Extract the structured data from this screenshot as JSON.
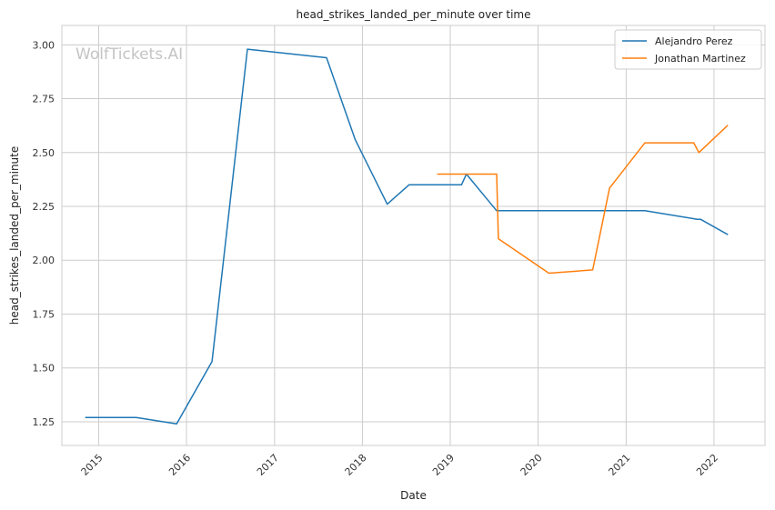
{
  "watermark": "WolfTickets.AI",
  "chart_data": {
    "type": "line",
    "title": "head_strikes_landed_per_minute over time",
    "xlabel": "Date",
    "ylabel": "head_strikes_landed_per_minute",
    "xlim": [
      "2014-08-01",
      "2022-08-01"
    ],
    "ylim": [
      1.14,
      3.09
    ],
    "x_ticks": [
      "2015",
      "2016",
      "2017",
      "2018",
      "2019",
      "2020",
      "2021",
      "2022"
    ],
    "y_ticks": [
      "1.25",
      "1.50",
      "1.75",
      "2.00",
      "2.25",
      "2.50",
      "2.75",
      "3.00"
    ],
    "grid": true,
    "legend_position": "top-right",
    "series": [
      {
        "name": "Alejandro Perez",
        "color": "#1f77b4",
        "points": [
          {
            "x": "2014-11-08",
            "y": 1.27
          },
          {
            "x": "2015-06-06",
            "y": 1.27
          },
          {
            "x": "2015-11-21",
            "y": 1.24
          },
          {
            "x": "2016-04-16",
            "y": 1.53
          },
          {
            "x": "2016-09-10",
            "y": 2.98
          },
          {
            "x": "2017-08-05",
            "y": 2.94
          },
          {
            "x": "2017-12-02",
            "y": 2.56
          },
          {
            "x": "2018-04-14",
            "y": 2.26
          },
          {
            "x": "2018-07-14",
            "y": 2.35
          },
          {
            "x": "2019-02-17",
            "y": 2.35
          },
          {
            "x": "2019-03-09",
            "y": 2.4
          },
          {
            "x": "2019-07-13",
            "y": 2.23
          },
          {
            "x": "2021-03-20",
            "y": 2.23
          },
          {
            "x": "2021-10-23",
            "y": 2.19
          },
          {
            "x": "2021-11-06",
            "y": 2.19
          },
          {
            "x": "2022-02-26",
            "y": 2.12
          }
        ]
      },
      {
        "name": "Jonathan Martinez",
        "color": "#ff7f0e",
        "points": [
          {
            "x": "2018-11-10",
            "y": 2.4
          },
          {
            "x": "2019-07-13",
            "y": 2.4
          },
          {
            "x": "2019-07-20",
            "y": 2.1
          },
          {
            "x": "2020-02-15",
            "y": 1.94
          },
          {
            "x": "2020-08-15",
            "y": 1.955
          },
          {
            "x": "2020-10-24",
            "y": 2.335
          },
          {
            "x": "2021-03-20",
            "y": 2.545
          },
          {
            "x": "2021-10-09",
            "y": 2.545
          },
          {
            "x": "2021-10-30",
            "y": 2.5
          },
          {
            "x": "2022-02-26",
            "y": 2.625
          }
        ]
      }
    ]
  }
}
